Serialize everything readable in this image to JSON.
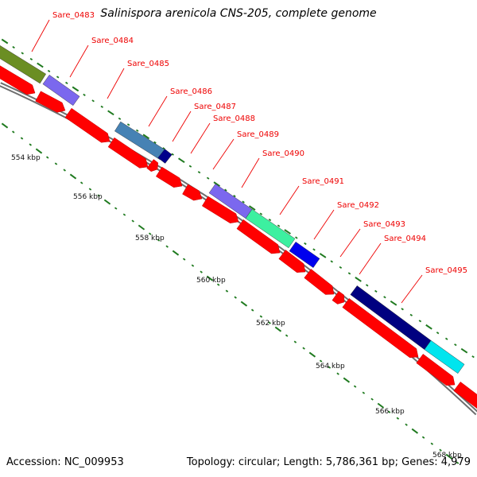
{
  "title": "Salinispora arenicola CNS-205, complete genome",
  "footer": {
    "accession": "Accession: NC_009953",
    "topology": "Topology: circular; Length: 5,786,361 bp; Genes: 4,979"
  },
  "colors": {
    "reverse_gene": "#ff0000",
    "label_text": "#ee0000",
    "tick_green": "#1f7a1f",
    "backbone": "#8c8c8c"
  },
  "scale_labels": [
    "554 kbp",
    "556 kbp",
    "558 kbp",
    "560 kbp",
    "562 kbp",
    "564 kbp",
    "566 kbp",
    "568 kbp"
  ],
  "gene_labels": [
    "Sare_0483",
    "Sare_0484",
    "Sare_0485",
    "Sare_0486",
    "Sare_0487",
    "Sare_0488",
    "Sare_0489",
    "Sare_0490",
    "Sare_0491",
    "Sare_0492",
    "Sare_0493",
    "Sare_0494",
    "Sare_0495"
  ],
  "cog_blocks": [
    {
      "color": "#6b8e23"
    },
    {
      "color": "#7b68ee"
    },
    {
      "color": "#4682b4"
    },
    {
      "color": "#00008b"
    },
    {
      "color": "#7b68ee"
    },
    {
      "color": "#3cf0a0"
    },
    {
      "color": "#0000ee"
    },
    {
      "color": "#000080"
    },
    {
      "color": "#00e5ee"
    }
  ]
}
